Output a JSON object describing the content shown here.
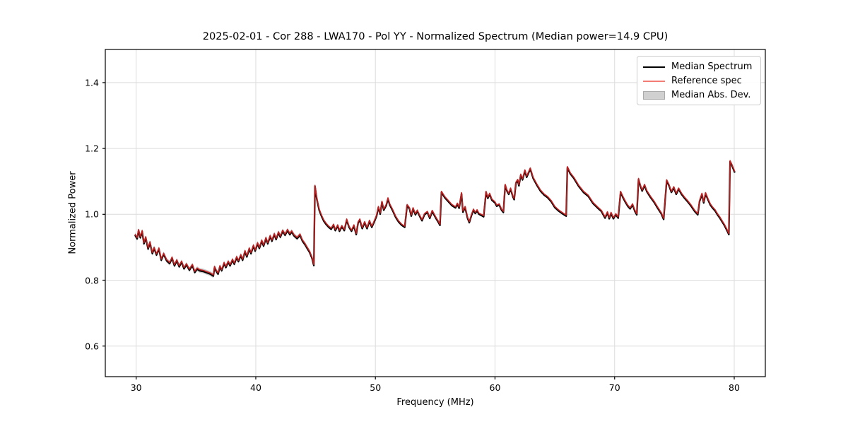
{
  "figure": {
    "title": "2025-02-01 - Cor 288 - LWA170 - Pol YY - Normalized Spectrum (Median power=14.9 CPU)",
    "background": "#ffffff"
  },
  "axes": {
    "xlabel": "Frequency (MHz)",
    "ylabel": "Normalized Power",
    "xlim": [
      27.4,
      82.6
    ],
    "ylim": [
      0.507,
      1.5
    ],
    "xticks": [
      30,
      40,
      50,
      60,
      70,
      80
    ],
    "xtick_labels": [
      "30",
      "40",
      "50",
      "60",
      "70",
      "80"
    ],
    "yticks": [
      0.6,
      0.8,
      1.0,
      1.2,
      1.4
    ],
    "ytick_labels": [
      "0.6",
      "0.8",
      "1.0",
      "1.2",
      "1.4"
    ],
    "grid": true,
    "grid_color": "#dcdcdc",
    "spine_color": "#000000"
  },
  "legend": {
    "location": "upper right",
    "items": [
      {
        "label": "Median Spectrum",
        "type": "line",
        "color": "#000000"
      },
      {
        "label": "Reference spec",
        "type": "line",
        "color": "#f47c76"
      },
      {
        "label": "Median Abs. Dev.",
        "type": "patch",
        "fill": "#d0d0d0",
        "border": "#ababab"
      }
    ]
  },
  "chart_data": {
    "type": "line",
    "title": "2025-02-01 - Cor 288 - LWA170 - Pol YY - Normalized Spectrum (Median power=14.9 CPU)",
    "xlabel": "Frequency (MHz)",
    "ylabel": "Normalized Power",
    "xlim": [
      27.4,
      82.6
    ],
    "ylim": [
      0.507,
      1.5
    ],
    "legend_position": "upper right",
    "grid": true,
    "series_notes": "Median Spectrum (black) and Reference spec (red, alpha) are visually coincident; Median Abs. Dev. is a narrow gray band around the line, widest below 45 MHz.",
    "median_power_cpu": 14.9,
    "points": [
      [
        29.9,
        0.938
      ],
      [
        30.08,
        0.927
      ],
      [
        30.2,
        0.952
      ],
      [
        30.35,
        0.93
      ],
      [
        30.5,
        0.949
      ],
      [
        30.65,
        0.912
      ],
      [
        30.8,
        0.93
      ],
      [
        31.0,
        0.896
      ],
      [
        31.15,
        0.915
      ],
      [
        31.35,
        0.882
      ],
      [
        31.5,
        0.898
      ],
      [
        31.7,
        0.878
      ],
      [
        31.9,
        0.896
      ],
      [
        32.1,
        0.862
      ],
      [
        32.3,
        0.88
      ],
      [
        32.55,
        0.86
      ],
      [
        32.8,
        0.852
      ],
      [
        33.0,
        0.868
      ],
      [
        33.2,
        0.845
      ],
      [
        33.4,
        0.86
      ],
      [
        33.6,
        0.842
      ],
      [
        33.8,
        0.856
      ],
      [
        34.0,
        0.836
      ],
      [
        34.2,
        0.848
      ],
      [
        34.45,
        0.832
      ],
      [
        34.7,
        0.846
      ],
      [
        34.9,
        0.825
      ],
      [
        35.1,
        0.835
      ],
      [
        35.3,
        0.83
      ],
      [
        35.6,
        0.828
      ],
      [
        35.9,
        0.824
      ],
      [
        36.2,
        0.82
      ],
      [
        36.45,
        0.814
      ],
      [
        36.55,
        0.84
      ],
      [
        36.7,
        0.828
      ],
      [
        36.85,
        0.82
      ],
      [
        37.0,
        0.842
      ],
      [
        37.15,
        0.83
      ],
      [
        37.35,
        0.852
      ],
      [
        37.5,
        0.84
      ],
      [
        37.7,
        0.856
      ],
      [
        37.85,
        0.845
      ],
      [
        38.05,
        0.862
      ],
      [
        38.2,
        0.85
      ],
      [
        38.4,
        0.87
      ],
      [
        38.55,
        0.858
      ],
      [
        38.75,
        0.876
      ],
      [
        38.9,
        0.862
      ],
      [
        39.1,
        0.888
      ],
      [
        39.25,
        0.872
      ],
      [
        39.45,
        0.896
      ],
      [
        39.6,
        0.882
      ],
      [
        39.8,
        0.905
      ],
      [
        39.95,
        0.89
      ],
      [
        40.15,
        0.912
      ],
      [
        40.3,
        0.898
      ],
      [
        40.5,
        0.92
      ],
      [
        40.65,
        0.905
      ],
      [
        40.85,
        0.928
      ],
      [
        41.0,
        0.912
      ],
      [
        41.2,
        0.934
      ],
      [
        41.35,
        0.92
      ],
      [
        41.55,
        0.94
      ],
      [
        41.7,
        0.925
      ],
      [
        41.9,
        0.945
      ],
      [
        42.05,
        0.932
      ],
      [
        42.25,
        0.95
      ],
      [
        42.45,
        0.938
      ],
      [
        42.65,
        0.952
      ],
      [
        42.85,
        0.94
      ],
      [
        43.0,
        0.948
      ],
      [
        43.2,
        0.936
      ],
      [
        43.45,
        0.928
      ],
      [
        43.7,
        0.938
      ],
      [
        43.9,
        0.92
      ],
      [
        44.1,
        0.91
      ],
      [
        44.3,
        0.898
      ],
      [
        44.5,
        0.886
      ],
      [
        44.7,
        0.868
      ],
      [
        44.85,
        0.846
      ],
      [
        44.95,
        1.086
      ],
      [
        45.1,
        1.048
      ],
      [
        45.3,
        1.014
      ],
      [
        45.5,
        0.995
      ],
      [
        45.7,
        0.98
      ],
      [
        45.9,
        0.97
      ],
      [
        46.1,
        0.962
      ],
      [
        46.3,
        0.956
      ],
      [
        46.5,
        0.968
      ],
      [
        46.65,
        0.952
      ],
      [
        46.85,
        0.966
      ],
      [
        47.0,
        0.95
      ],
      [
        47.2,
        0.964
      ],
      [
        47.4,
        0.952
      ],
      [
        47.6,
        0.984
      ],
      [
        47.8,
        0.962
      ],
      [
        48.0,
        0.95
      ],
      [
        48.2,
        0.966
      ],
      [
        48.4,
        0.94
      ],
      [
        48.55,
        0.975
      ],
      [
        48.7,
        0.984
      ],
      [
        48.9,
        0.958
      ],
      [
        49.1,
        0.976
      ],
      [
        49.3,
        0.958
      ],
      [
        49.5,
        0.98
      ],
      [
        49.7,
        0.962
      ],
      [
        49.9,
        0.978
      ],
      [
        50.1,
        0.996
      ],
      [
        50.25,
        1.022
      ],
      [
        50.4,
        1.002
      ],
      [
        50.55,
        1.038
      ],
      [
        50.7,
        1.014
      ],
      [
        50.9,
        1.028
      ],
      [
        51.05,
        1.048
      ],
      [
        51.2,
        1.03
      ],
      [
        51.45,
        1.012
      ],
      [
        51.7,
        0.992
      ],
      [
        51.95,
        0.978
      ],
      [
        52.2,
        0.968
      ],
      [
        52.45,
        0.962
      ],
      [
        52.65,
        1.028
      ],
      [
        52.85,
        1.018
      ],
      [
        53.0,
        0.996
      ],
      [
        53.15,
        1.018
      ],
      [
        53.35,
        1.0
      ],
      [
        53.5,
        1.011
      ],
      [
        53.7,
        0.996
      ],
      [
        53.9,
        0.982
      ],
      [
        54.1,
        1.0
      ],
      [
        54.35,
        1.007
      ],
      [
        54.55,
        0.989
      ],
      [
        54.75,
        1.01
      ],
      [
        54.9,
        1.0
      ],
      [
        55.05,
        0.99
      ],
      [
        55.25,
        0.978
      ],
      [
        55.4,
        0.968
      ],
      [
        55.52,
        1.068
      ],
      [
        55.8,
        1.052
      ],
      [
        56.1,
        1.04
      ],
      [
        56.4,
        1.028
      ],
      [
        56.7,
        1.021
      ],
      [
        56.85,
        1.032
      ],
      [
        57.0,
        1.02
      ],
      [
        57.2,
        1.064
      ],
      [
        57.32,
        1.008
      ],
      [
        57.5,
        1.022
      ],
      [
        57.7,
        0.99
      ],
      [
        57.85,
        0.976
      ],
      [
        58.05,
        1.0
      ],
      [
        58.2,
        1.014
      ],
      [
        58.35,
        1.004
      ],
      [
        58.5,
        1.012
      ],
      [
        58.65,
        1.002
      ],
      [
        58.85,
        0.998
      ],
      [
        59.05,
        0.994
      ],
      [
        59.25,
        1.068
      ],
      [
        59.4,
        1.05
      ],
      [
        59.55,
        1.062
      ],
      [
        59.75,
        1.044
      ],
      [
        60.0,
        1.036
      ],
      [
        60.15,
        1.026
      ],
      [
        60.35,
        1.03
      ],
      [
        60.55,
        1.014
      ],
      [
        60.7,
        1.007
      ],
      [
        60.85,
        1.089
      ],
      [
        61.0,
        1.072
      ],
      [
        61.15,
        1.062
      ],
      [
        61.3,
        1.078
      ],
      [
        61.5,
        1.054
      ],
      [
        61.6,
        1.046
      ],
      [
        61.75,
        1.096
      ],
      [
        61.9,
        1.104
      ],
      [
        62.0,
        1.088
      ],
      [
        62.15,
        1.12
      ],
      [
        62.3,
        1.106
      ],
      [
        62.5,
        1.133
      ],
      [
        62.65,
        1.114
      ],
      [
        62.95,
        1.139
      ],
      [
        63.2,
        1.11
      ],
      [
        63.5,
        1.09
      ],
      [
        63.8,
        1.072
      ],
      [
        64.1,
        1.06
      ],
      [
        64.4,
        1.052
      ],
      [
        64.7,
        1.04
      ],
      [
        65.0,
        1.022
      ],
      [
        65.3,
        1.012
      ],
      [
        65.6,
        1.004
      ],
      [
        65.95,
        0.996
      ],
      [
        66.05,
        1.143
      ],
      [
        66.3,
        1.124
      ],
      [
        66.6,
        1.11
      ],
      [
        67.0,
        1.086
      ],
      [
        67.4,
        1.068
      ],
      [
        67.8,
        1.056
      ],
      [
        68.2,
        1.034
      ],
      [
        68.6,
        1.02
      ],
      [
        68.9,
        1.01
      ],
      [
        69.2,
        0.99
      ],
      [
        69.4,
        1.006
      ],
      [
        69.55,
        0.988
      ],
      [
        69.7,
        1.004
      ],
      [
        69.9,
        0.988
      ],
      [
        70.1,
        1.0
      ],
      [
        70.3,
        0.99
      ],
      [
        70.5,
        1.068
      ],
      [
        70.7,
        1.052
      ],
      [
        70.9,
        1.038
      ],
      [
        71.1,
        1.026
      ],
      [
        71.3,
        1.018
      ],
      [
        71.5,
        1.03
      ],
      [
        71.7,
        1.01
      ],
      [
        71.85,
        1.0
      ],
      [
        72.0,
        1.107
      ],
      [
        72.15,
        1.088
      ],
      [
        72.3,
        1.072
      ],
      [
        72.5,
        1.089
      ],
      [
        72.7,
        1.07
      ],
      [
        73.0,
        1.053
      ],
      [
        73.3,
        1.038
      ],
      [
        73.6,
        1.02
      ],
      [
        73.9,
        1.003
      ],
      [
        74.1,
        0.986
      ],
      [
        74.35,
        1.103
      ],
      [
        74.55,
        1.088
      ],
      [
        74.75,
        1.068
      ],
      [
        74.95,
        1.082
      ],
      [
        75.15,
        1.062
      ],
      [
        75.35,
        1.078
      ],
      [
        75.6,
        1.062
      ],
      [
        75.85,
        1.05
      ],
      [
        76.1,
        1.04
      ],
      [
        76.4,
        1.026
      ],
      [
        76.7,
        1.01
      ],
      [
        76.95,
        1.0
      ],
      [
        77.1,
        1.04
      ],
      [
        77.3,
        1.062
      ],
      [
        77.45,
        1.036
      ],
      [
        77.6,
        1.064
      ],
      [
        77.8,
        1.046
      ],
      [
        78.0,
        1.03
      ],
      [
        78.2,
        1.02
      ],
      [
        78.4,
        1.012
      ],
      [
        78.6,
        1.0
      ],
      [
        78.8,
        0.99
      ],
      [
        79.0,
        0.978
      ],
      [
        79.2,
        0.966
      ],
      [
        79.4,
        0.952
      ],
      [
        79.55,
        0.94
      ],
      [
        79.65,
        1.161
      ],
      [
        79.8,
        1.15
      ],
      [
        80.05,
        1.128
      ]
    ],
    "line_colors": {
      "median": "#000000",
      "reference": "#c42222",
      "mad_band": "#bdbdbd"
    }
  }
}
